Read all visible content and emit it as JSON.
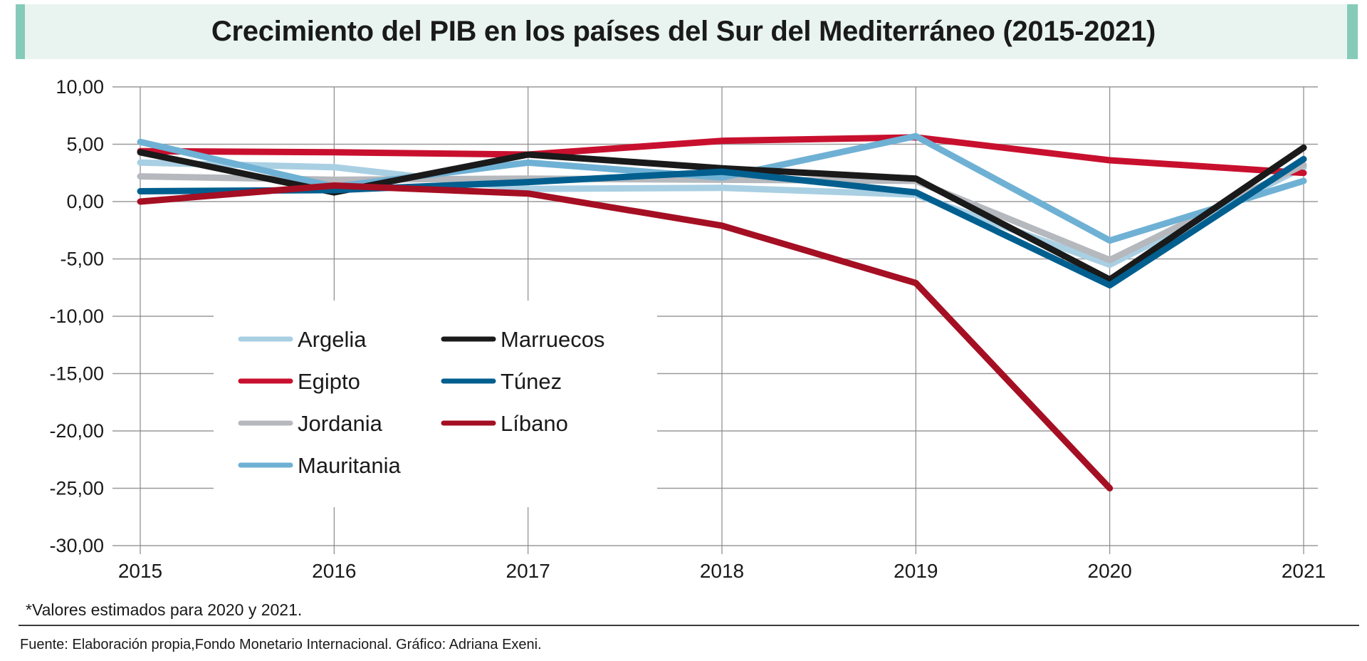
{
  "chart_data": {
    "type": "line",
    "title": "Crecimiento del PIB en los países del Sur del Mediterráneo (2015-2021)",
    "xlabel": "",
    "ylabel": "",
    "x": [
      "2015",
      "2016",
      "2017",
      "2018",
      "2019",
      "2020",
      "2021"
    ],
    "ylim": [
      -30,
      10
    ],
    "yticks": [
      10,
      5,
      0,
      -5,
      -10,
      -15,
      -20,
      -25,
      -30
    ],
    "ytick_labels": [
      "10,00",
      "5,00",
      "0,00",
      "-5,00",
      "-10,00",
      "-15,00",
      "-20,00",
      "-25,00",
      "-30,00"
    ],
    "grid": true,
    "legend_position": "lower-left (inside plot)",
    "series": [
      {
        "name": "Argelia",
        "color": "#a9cfe3",
        "values": [
          3.4,
          3.0,
          1.1,
          1.2,
          0.6,
          -5.5,
          3.0
        ]
      },
      {
        "name": "Egipto",
        "color": "#c8102e",
        "values": [
          4.4,
          4.3,
          4.1,
          5.3,
          5.6,
          3.6,
          2.5
        ]
      },
      {
        "name": "Jordania",
        "color": "#b5b8bd",
        "values": [
          2.2,
          1.9,
          2.0,
          1.9,
          1.8,
          -5.1,
          3.2
        ]
      },
      {
        "name": "Mauritania",
        "color": "#6fb1d4",
        "values": [
          5.2,
          1.3,
          3.4,
          2.1,
          5.7,
          -3.4,
          1.8
        ]
      },
      {
        "name": "Marruecos",
        "color": "#1a1a1a",
        "values": [
          4.3,
          0.8,
          4.1,
          2.9,
          2.0,
          -6.8,
          4.7
        ]
      },
      {
        "name": "Túnez",
        "color": "#005f8f",
        "values": [
          0.9,
          1.0,
          1.7,
          2.6,
          0.8,
          -7.3,
          3.7
        ]
      },
      {
        "name": "Líbano",
        "color": "#a50f23",
        "values": [
          0.0,
          1.4,
          0.7,
          -2.1,
          -7.1,
          -25.0,
          null
        ]
      }
    ],
    "legend_order": [
      "Argelia",
      "Marruecos",
      "Egipto",
      "Túnez",
      "Jordania",
      "Líbano",
      "Mauritania"
    ]
  },
  "header": {
    "title": "Crecimiento del PIB en los países del Sur del Mediterráneo (2015-2021)",
    "accent_color": "#86cbb9",
    "background_color": "#e9f4f1"
  },
  "notes": {
    "estimate_note": "*Valores estimados para 2020 y 2021.",
    "source": "Fuente: Elaboración propia,Fondo Monetario Internacional. Gráfico: Adriana Exeni."
  }
}
